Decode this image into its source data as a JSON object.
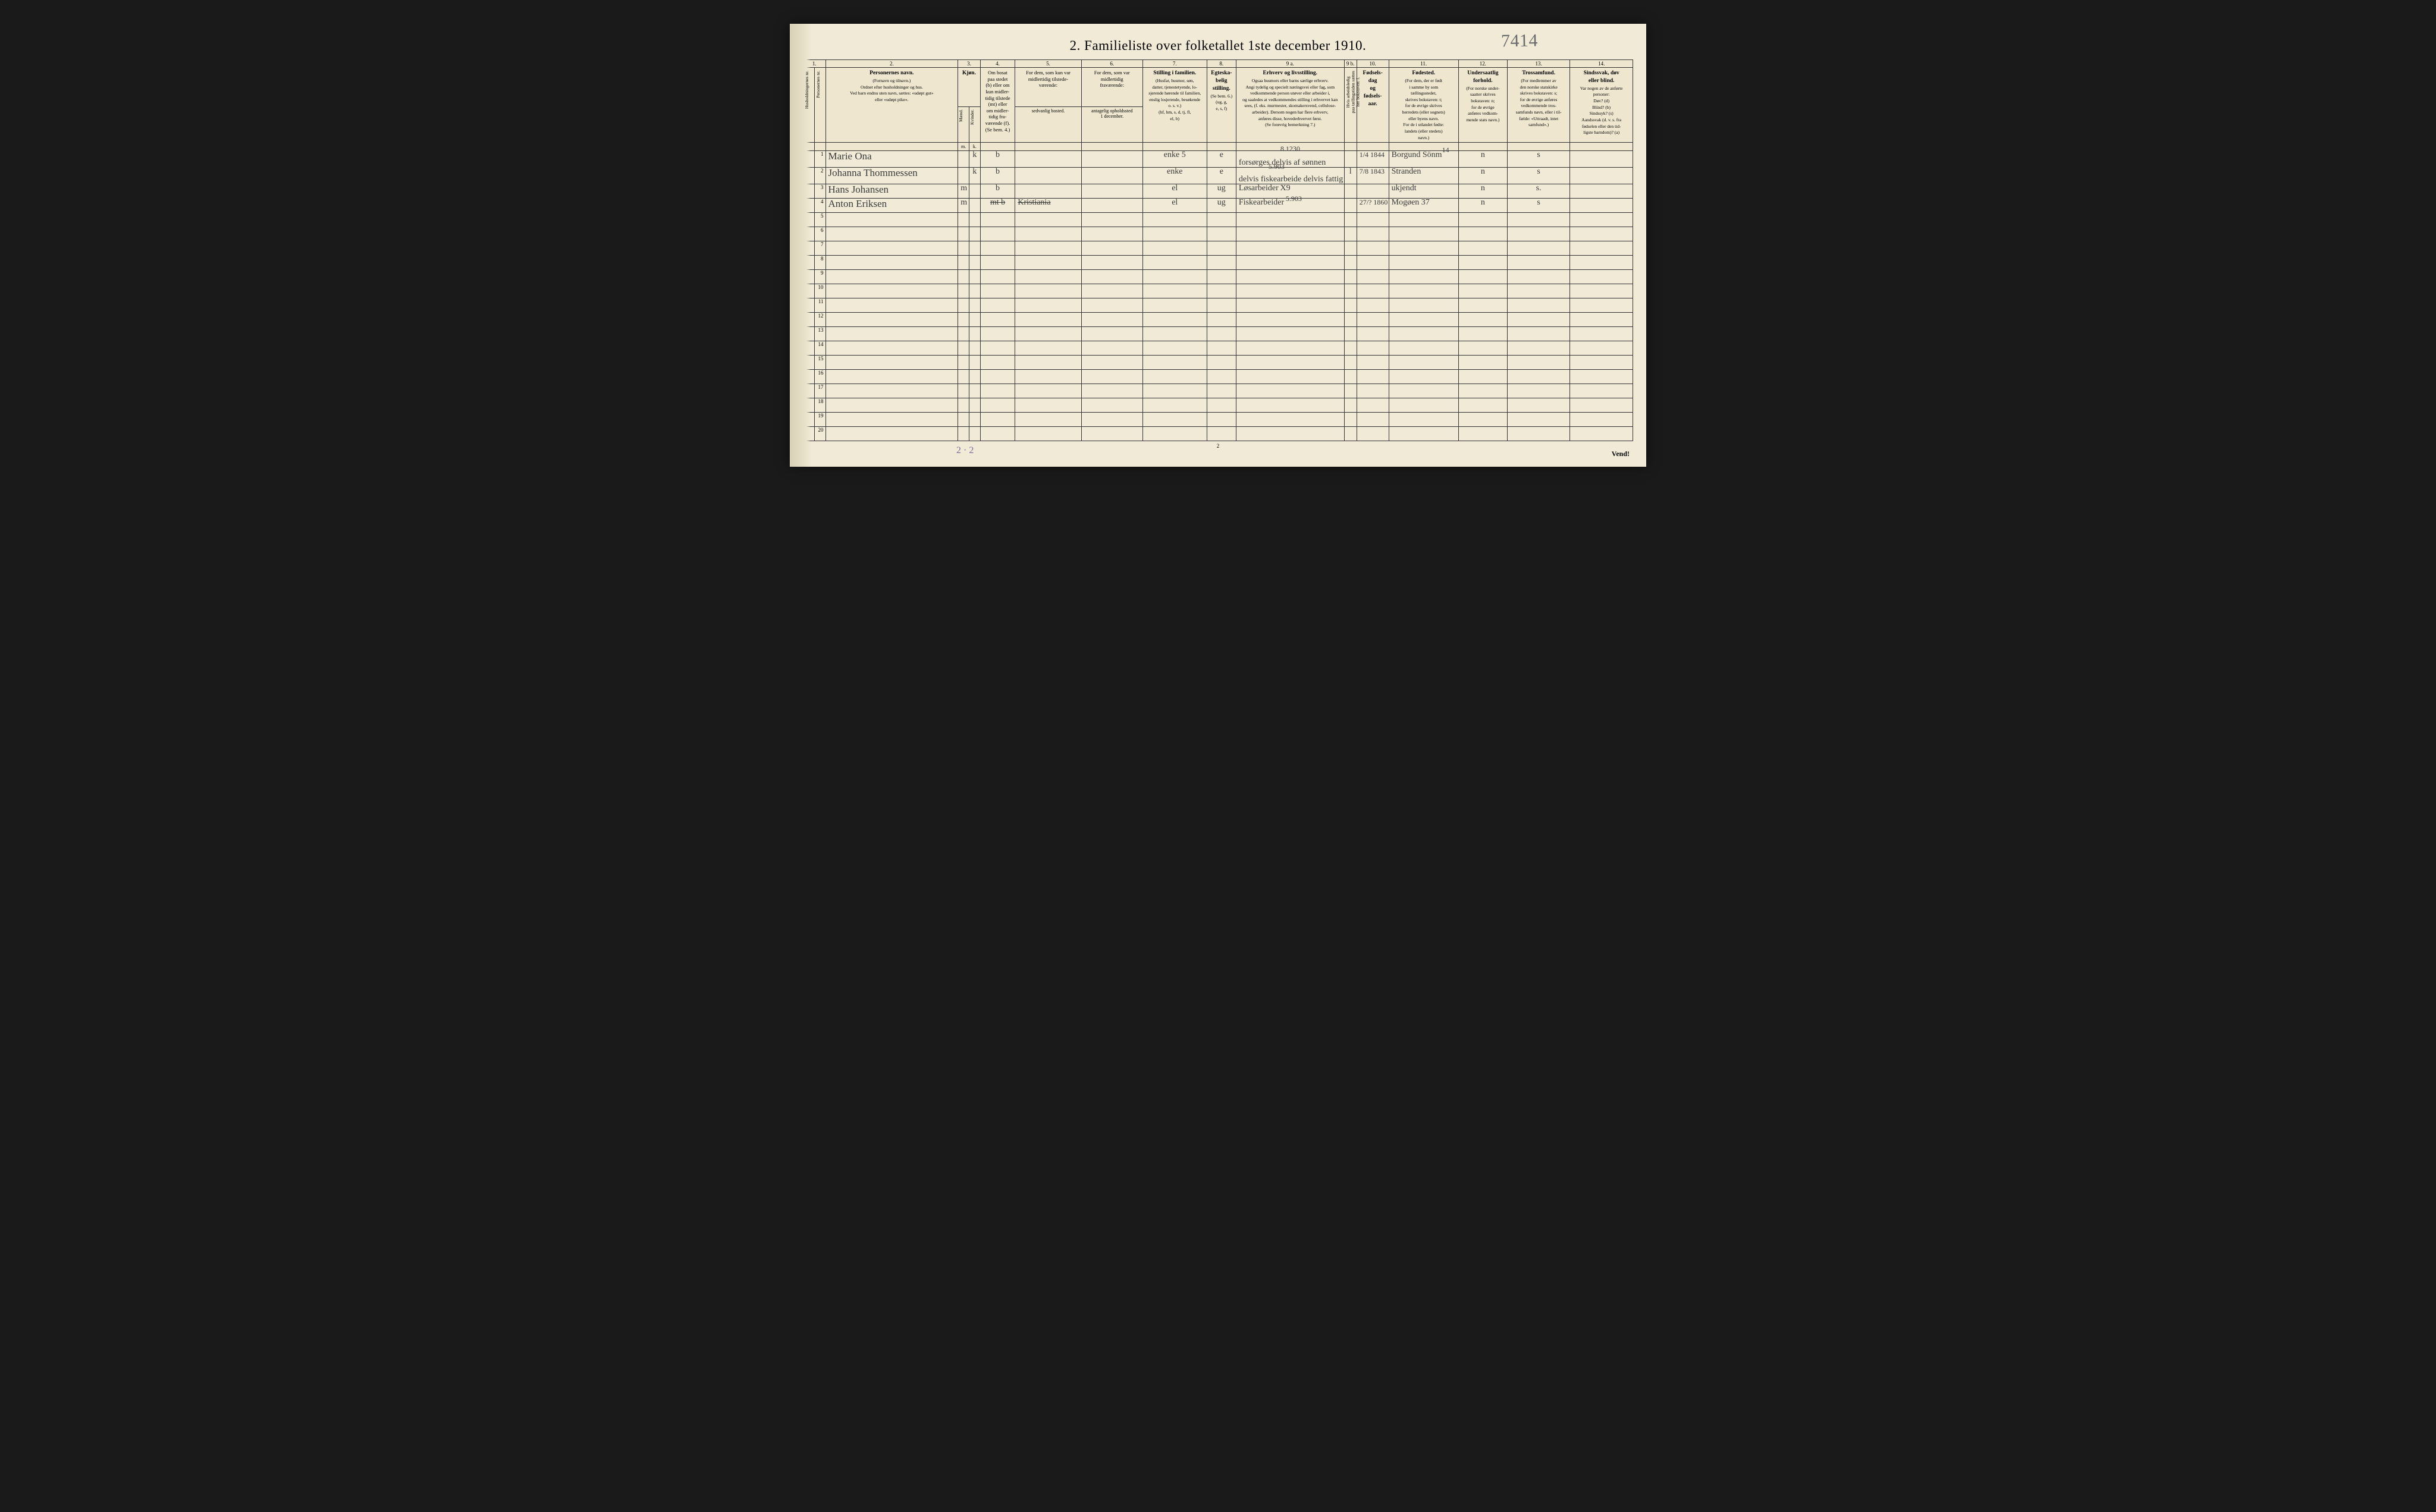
{
  "title": "2.   Familieliste over folketallet 1ste december 1910.",
  "corner_note": "7414",
  "bottom_note": "2 · 2",
  "page_number_bottom": "2",
  "vend": "Vend!",
  "col_numbers": [
    "1.",
    "2.",
    "3.",
    "4.",
    "5.",
    "6.",
    "7.",
    "8.",
    "9 a.",
    "9 b.",
    "10.",
    "11.",
    "12.",
    "13.",
    "14."
  ],
  "headers": {
    "c1a": "Husholdningernes nr.",
    "c1b": "Personernes nr.",
    "c2_title": "Personernes navn.",
    "c2_body": "(Fornavn og tilnavn.)\nOrdnet efter husholdninger og hus.\nVed barn endnu uten navn, sættes: «udøpt gut»\neller «udøpt pike».",
    "c3_title": "Kjøn.",
    "c3a": "Mænd.",
    "c3b": "Kvinder.",
    "c4_title": "Om bosat\npaa stedet\n(b) eller om\nkun midler-\ntidig tilstede\n(mt) eller\nom midler-\ntidig fra-\nværende (f).\n(Se bem. 4.)",
    "c5_title": "For dem, som kun var\nmidlertidig tilstede-\nværende:",
    "c5_sub": "sedvanlig bosted.",
    "c6_title": "For dem, som var\nmidlertidig\nfraværende:",
    "c6_sub": "antagelig opholdssted\n1 december.",
    "c7_title": "Stilling i familien.",
    "c7_body": "(Husfar, husmor, søn,\ndatter, tjenestetyende, lo-\nsjerende hørende til familien,\nenslig losjerende, besøkende\no. s. v.)\n(hf, hm, s, d, tj, fl,\nel, b)",
    "c8_title": "Egteska-\nbelig\nstilling.",
    "c8_body": "(Se bem. 6.)\n(ug, g,\ne, s, f)",
    "c9_title": "Erhverv og livsstilling.",
    "c9_body": "Ogsaa husmors eller barns særlige erhverv.\nAngi tydelig og specielt næringsvei eller fag, som\nvedkommende person utøver eller arbeider i,\nog saaledes at vedkommendes stilling i erhvervet kan\nsees, (f. eks. murmester, skomakersvend, cellulose-\narbeider). Dersom nogen har flere erhverv,\nanføres disse, hovederhvervet først.\n(Se forøvrig bemerkning 7.)",
    "c9b": "Hvis arbeidsledig\npaa tællingstiden sættes\nher bokstaven: l.",
    "c10_title": "Fødsels-\ndag\nog\nfødsels-\naar.",
    "c11_title": "Fødested.",
    "c11_body": "(For dem, der er født\ni samme by som\ntællingsstedet,\nskrives bokstaven: t;\nfor de øvrige skrives\nherredets (eller sognets)\neller byens navn.\nFor de i utlandet fødte:\nlandets (eller stedets)\nnavn.)",
    "c12_title": "Undersaatlig\nforhold.",
    "c12_body": "(For norske under-\nsaatter skrives\nbokstaven: n;\nfor de øvrige\nanføres vedkom-\nmende stats navn.)",
    "c13_title": "Trossamfund.",
    "c13_body": "(For medlemmer av\nden norske statskirke\nskrives bokstaven: s;\nfor de øvrige anføres\nvedkommende tros-\nsamfunds navn, eller i til-\nfælde: «Uttraadt, intet\nsamfund».)",
    "c14_title": "Sindssvak, døv\neller blind.",
    "c14_body": "Var nogen av de anførte\npersoner:\nDøv?      (d)\nBlind?    (b)\nSindssyk? (s)\nAandssvak (d. v. s. fra\nfødselen eller den tid-\nligste barndom)? (a)"
  },
  "subhead_mk": {
    "m": "m.",
    "k": "k."
  },
  "annotations": {
    "row1_above9": "8.1230",
    "row2_above9": "5.903",
    "row3_after9": "X9",
    "row4_after9": "5.903",
    "row1_11_sup": "14"
  },
  "rows": [
    {
      "n": "1",
      "name": "Marie Ona",
      "sex_m": "",
      "sex_k": "k",
      "bosat": "b",
      "c5": "",
      "c6": "",
      "c7": "enke 5",
      "c8": "e",
      "c9": "forsørges delvis af sønnen",
      "c9b": "",
      "c10": "1/4 1844",
      "c11": "Borgund Sönm",
      "c12": "n",
      "c13": "s",
      "c14": ""
    },
    {
      "n": "2",
      "name": "Johanna Thommessen",
      "sex_m": "",
      "sex_k": "k",
      "bosat": "b",
      "c5": "",
      "c6": "",
      "c7": "enke",
      "c8": "e",
      "c9": "delvis fiskearbeide delvis fattig",
      "c9b": "l",
      "c10": "7/8 1843",
      "c11": "Stranden",
      "c12": "n",
      "c13": "s",
      "c14": ""
    },
    {
      "n": "3",
      "name": "Hans Johansen",
      "sex_m": "m",
      "sex_k": "",
      "bosat": "b",
      "c5": "",
      "c6": "",
      "c7": "el",
      "c8": "ug",
      "c9": "Løsarbeider",
      "c9b": "",
      "c10": "",
      "c11": "ukjendt",
      "c12": "n",
      "c13": "s.",
      "c14": ""
    },
    {
      "n": "4",
      "name": "Anton Eriksen",
      "sex_m": "m",
      "sex_k": "",
      "bosat_strike": "mt b",
      "c5_strike": "Kristiania",
      "c6": "",
      "c7": "el",
      "c8": "ug",
      "c9": "Fiskearbeider",
      "c9b": "",
      "c10": "27/? 1860",
      "c11": "Mogøen 37",
      "c12": "n",
      "c13": "s",
      "c14": ""
    }
  ],
  "empty_rows": [
    "5",
    "6",
    "7",
    "8",
    "9",
    "10",
    "11",
    "12",
    "13",
    "14",
    "15",
    "16",
    "17",
    "18",
    "19",
    "20"
  ]
}
